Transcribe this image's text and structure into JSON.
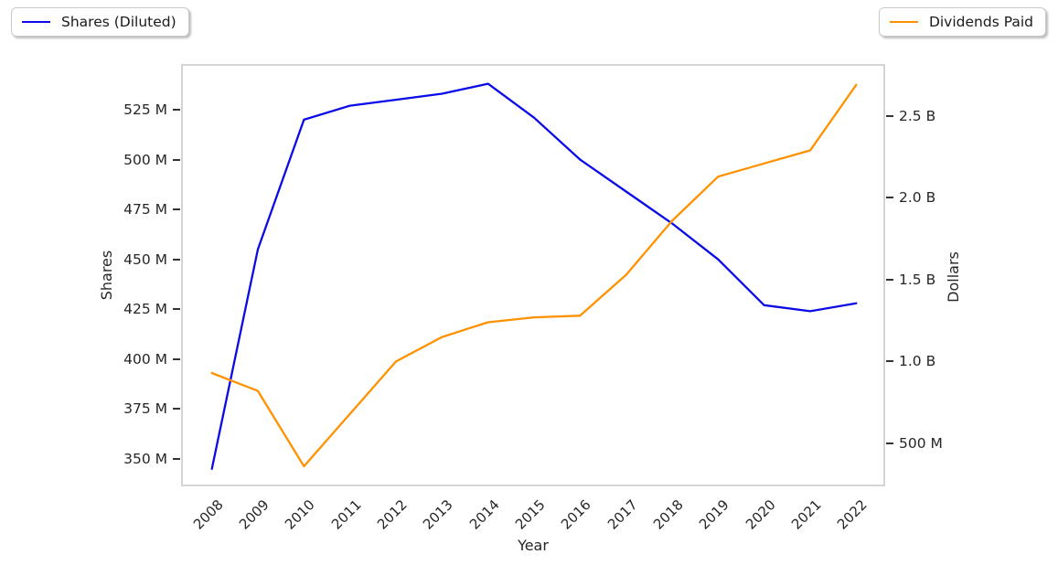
{
  "legends": {
    "shares": {
      "label": "Shares (Diluted)",
      "color": "#0a0ae8"
    },
    "dividends": {
      "label": "Dividends Paid",
      "color": "#ff9100"
    }
  },
  "chart_data": {
    "type": "line",
    "title": "",
    "categories": [
      2008,
      2009,
      2010,
      2011,
      2012,
      2013,
      2014,
      2015,
      2016,
      2017,
      2018,
      2019,
      2020,
      2021,
      2022
    ],
    "series": [
      {
        "name": "Shares (Diluted)",
        "axis": "left",
        "unit": "millions of shares",
        "color": "#0a0ae8",
        "values": [
          345,
          455,
          520,
          527,
          530,
          533,
          538,
          521,
          500,
          484,
          468,
          450,
          427,
          424,
          428
        ]
      },
      {
        "name": "Dividends Paid",
        "axis": "right",
        "unit": "billions of dollars",
        "color": "#ff9100",
        "values": [
          0.93,
          0.82,
          0.36,
          0.68,
          1.0,
          1.15,
          1.24,
          1.27,
          1.28,
          1.53,
          1.86,
          2.13,
          2.21,
          2.29,
          2.69
        ]
      }
    ],
    "xlabel": "Year",
    "xaxis": {
      "tick_labels": [
        "2008",
        "2009",
        "2010",
        "2011",
        "2012",
        "2013",
        "2014",
        "2015",
        "2016",
        "2017",
        "2018",
        "2019",
        "2020",
        "2021",
        "2022"
      ],
      "range_index": [
        -0.67,
        14.63
      ],
      "tick_rotation_deg": 45
    },
    "yaxis_left": {
      "label": "Shares",
      "tick_values": [
        350,
        375,
        400,
        425,
        450,
        475,
        500,
        525
      ],
      "tick_labels": [
        "350 M",
        "375 M",
        "400 M",
        "425 M",
        "450 M",
        "475 M",
        "500 M",
        "525 M"
      ],
      "range": [
        336.2,
        547.9
      ]
    },
    "yaxis_right": {
      "label": "Dollars",
      "tick_values": [
        0.5,
        1.0,
        1.5,
        2.0,
        2.5
      ],
      "tick_labels": [
        "500 M",
        "1.0 B",
        "1.5 B",
        "2.0 B",
        "2.5 B"
      ],
      "range": [
        0.237,
        2.818
      ]
    },
    "grid": false,
    "legend_position": "outside-top-left (left series) and outside-top-right (right series)"
  }
}
